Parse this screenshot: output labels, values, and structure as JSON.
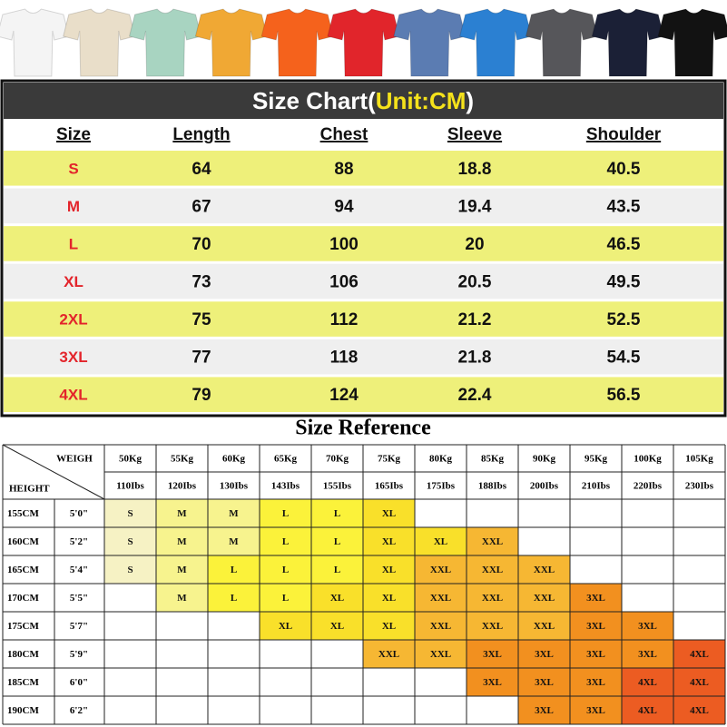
{
  "shirt_colors": [
    "#f4f4f4",
    "#e9dec9",
    "#a8d4c1",
    "#f0a834",
    "#f5621c",
    "#e1252b",
    "#5b7cb2",
    "#2b80d2",
    "#56565a",
    "#1b2036",
    "#121212"
  ],
  "size_chart": {
    "title": "Size Chart(",
    "title_unit": "Unit:CM",
    "title_end": ")",
    "headers": [
      "Size",
      "Length",
      "Chest",
      "Sleeve",
      "Shoulder"
    ],
    "rows": [
      [
        "S",
        64,
        88,
        18.8,
        40.5
      ],
      [
        "M",
        67,
        94,
        19.4,
        43.5
      ],
      [
        "L",
        70,
        100,
        20,
        46.5
      ],
      [
        "XL",
        73,
        106,
        20.5,
        49.5
      ],
      [
        "2XL",
        75,
        112,
        21.2,
        52.5
      ],
      [
        "3XL",
        77,
        118,
        21.8,
        54.5
      ],
      [
        "4XL",
        79,
        124,
        22.4,
        56.5
      ]
    ],
    "row_colors": [
      "#eef07a",
      "#efefef"
    ]
  },
  "size_reference": {
    "title": "Size Reference",
    "weigh_label": "WEIGH",
    "height_label": "HEIGHT",
    "weights": [
      "50Kg",
      "55Kg",
      "60Kg",
      "65Kg",
      "70Kg",
      "75Kg",
      "80Kg",
      "85Kg",
      "90Kg",
      "95Kg",
      "100Kg",
      "105Kg"
    ],
    "lbs": [
      "110Ibs",
      "120Ibs",
      "130Ibs",
      "143Ibs",
      "155Ibs",
      "165Ibs",
      "175Ibs",
      "188Ibs",
      "200Ibs",
      "210Ibs",
      "220Ibs",
      "230Ibs"
    ],
    "rows": [
      {
        "cm": "155CM",
        "ft": "5'0\"",
        "sizes": [
          "S",
          "M",
          "M",
          "L",
          "L",
          "XL",
          null,
          null,
          null,
          null,
          null,
          null
        ]
      },
      {
        "cm": "160CM",
        "ft": "5'2\"",
        "sizes": [
          "S",
          "M",
          "M",
          "L",
          "L",
          "XL",
          "XL",
          "XXL",
          null,
          null,
          null,
          null
        ]
      },
      {
        "cm": "165CM",
        "ft": "5'4\"",
        "sizes": [
          "S",
          "M",
          "L",
          "L",
          "L",
          "XL",
          "XXL",
          "XXL",
          "XXL",
          null,
          null,
          null
        ]
      },
      {
        "cm": "170CM",
        "ft": "5'5\"",
        "sizes": [
          null,
          "M",
          "L",
          "L",
          "XL",
          "XL",
          "XXL",
          "XXL",
          "XXL",
          "3XL",
          null,
          null
        ]
      },
      {
        "cm": "175CM",
        "ft": "5'7\"",
        "sizes": [
          null,
          null,
          null,
          "XL",
          "XL",
          "XL",
          "XXL",
          "XXL",
          "XXL",
          "3XL",
          "3XL",
          null
        ]
      },
      {
        "cm": "180CM",
        "ft": "5'9\"",
        "sizes": [
          null,
          null,
          null,
          null,
          null,
          "XXL",
          "XXL",
          "3XL",
          "3XL",
          "3XL",
          "3XL",
          "4XL"
        ]
      },
      {
        "cm": "185CM",
        "ft": "6'0\"",
        "sizes": [
          null,
          null,
          null,
          null,
          null,
          null,
          null,
          "3XL",
          "3XL",
          "3XL",
          "4XL",
          "4XL"
        ]
      },
      {
        "cm": "190CM",
        "ft": "6'2\"",
        "sizes": [
          null,
          null,
          null,
          null,
          null,
          null,
          null,
          null,
          "3XL",
          "3XL",
          "4XL",
          "4XL"
        ]
      }
    ],
    "cell_colors": {
      "S": "#f6f2c4",
      "M": "#f7f38e",
      "L": "#fbf23a",
      "XL": "#f9e02a",
      "XXL": "#f6b733",
      "3XL": "#f2901f",
      "4XL": "#ec5c22"
    }
  }
}
